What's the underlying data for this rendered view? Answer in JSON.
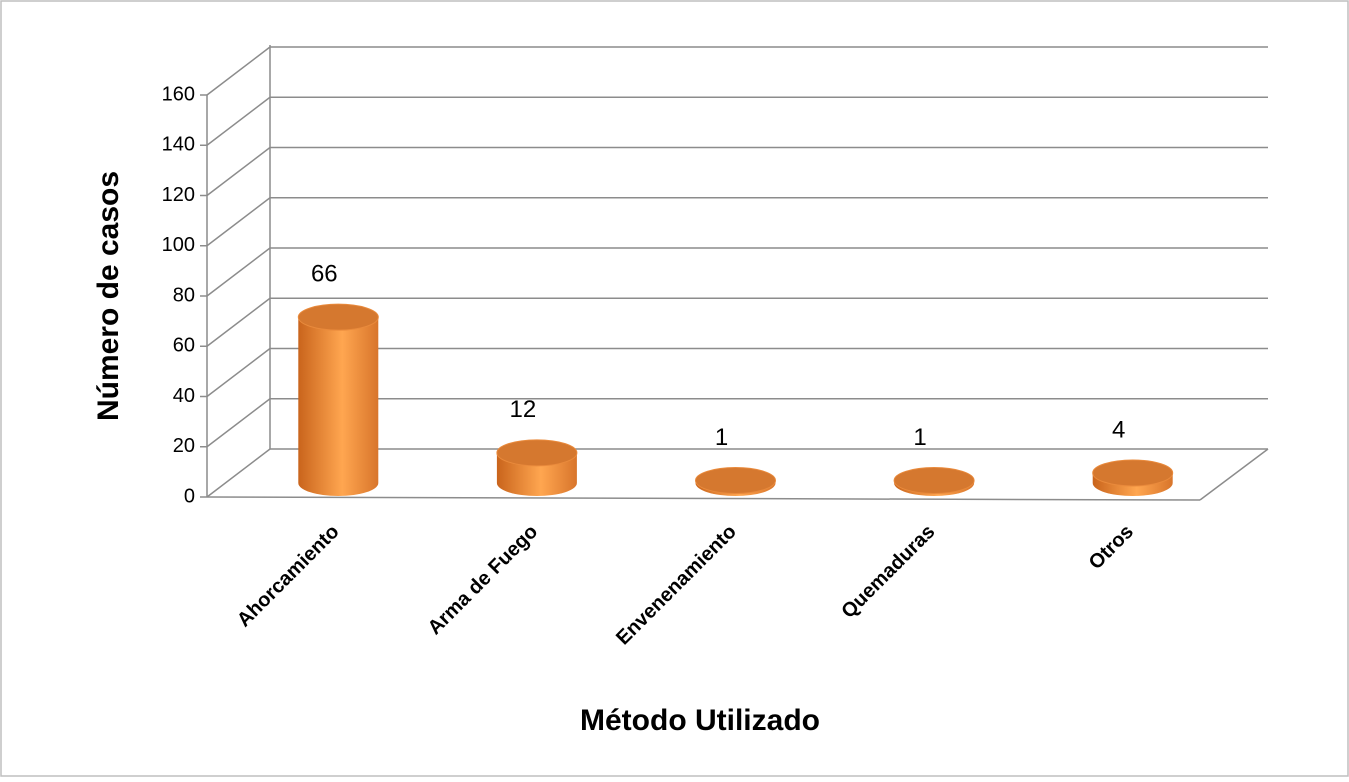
{
  "chart_data": {
    "type": "bar3d",
    "x_label": "Método Utilizado",
    "y_label": "Número de casos",
    "categories": [
      "Ahorcamiento",
      "Arma de Fuego",
      "Envenenamiento",
      "Quemaduras",
      "Otros"
    ],
    "values": [
      66,
      12,
      1,
      1,
      4
    ],
    "color": "#f79646",
    "ylim": [
      0,
      160
    ],
    "yticks": [
      0,
      20,
      40,
      60,
      80,
      100,
      120,
      140,
      160
    ],
    "grid": true
  }
}
